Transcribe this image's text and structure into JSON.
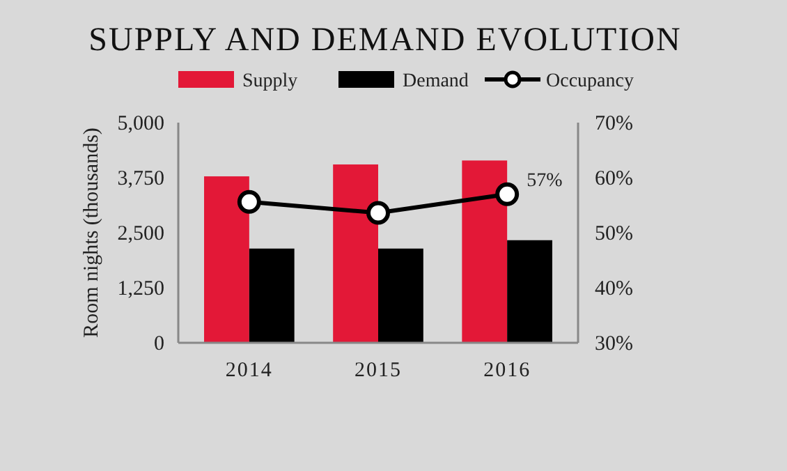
{
  "chart_data": {
    "type": "bar",
    "title": "SUPPLY AND DEMAND EVOLUTION",
    "ylabel": "Room nights (thousands)",
    "categories": [
      "2014",
      "2015",
      "2016"
    ],
    "series": [
      {
        "name": "Supply",
        "color": "#e31837",
        "values": [
          3780,
          4050,
          4140
        ]
      },
      {
        "name": "Demand",
        "color": "#000000",
        "values": [
          2140,
          2140,
          2330
        ]
      },
      {
        "name": "Occupancy",
        "type": "line",
        "axis": "y2",
        "color": "#000000",
        "marker": "circle",
        "values": [
          55.6,
          53.6,
          57
        ],
        "value_labels": [
          null,
          null,
          "57%"
        ]
      }
    ],
    "ylim": [
      0,
      5000
    ],
    "yticks": [
      0,
      {
        "value": 1250,
        "label": "1,250"
      },
      {
        "value": 2500,
        "label": "2,500"
      },
      {
        "value": 3750,
        "label": "3,750"
      },
      {
        "value": 5000,
        "label": "5,000"
      }
    ],
    "y2lim": [
      30,
      70
    ],
    "y2ticks": [
      {
        "value": 30,
        "label": "30%"
      },
      {
        "value": 40,
        "label": "40%"
      },
      {
        "value": 50,
        "label": "50%"
      },
      {
        "value": 60,
        "label": "60%"
      },
      {
        "value": 70,
        "label": "70%"
      }
    ],
    "grid": false,
    "legend": "top"
  }
}
